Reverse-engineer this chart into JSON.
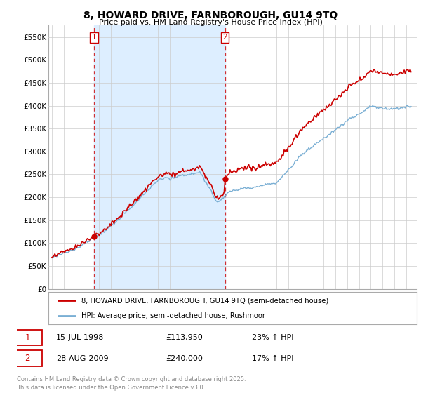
{
  "title": "8, HOWARD DRIVE, FARNBOROUGH, GU14 9TQ",
  "subtitle": "Price paid vs. HM Land Registry's House Price Index (HPI)",
  "line1_label": "8, HOWARD DRIVE, FARNBOROUGH, GU14 9TQ (semi-detached house)",
  "line2_label": "HPI: Average price, semi-detached house, Rushmoor",
  "line1_color": "#cc0000",
  "line2_color": "#7aafd4",
  "vline_color": "#cc0000",
  "shade_color": "#ddeeff",
  "purchase1_date": "15-JUL-1998",
  "purchase1_price": 113950,
  "purchase1_hpi": "23% ↑ HPI",
  "purchase2_date": "28-AUG-2009",
  "purchase2_price": 240000,
  "purchase2_hpi": "17% ↑ HPI",
  "ylim": [
    0,
    575000
  ],
  "yticks": [
    0,
    50000,
    100000,
    150000,
    200000,
    250000,
    300000,
    350000,
    400000,
    450000,
    500000,
    550000
  ],
  "ytick_labels": [
    "£0",
    "£50K",
    "£100K",
    "£150K",
    "£200K",
    "£250K",
    "£300K",
    "£350K",
    "£400K",
    "£450K",
    "£500K",
    "£550K"
  ],
  "footer": "Contains HM Land Registry data © Crown copyright and database right 2025.\nThis data is licensed under the Open Government Licence v3.0.",
  "background_color": "#ffffff",
  "grid_color": "#cccccc",
  "purchase1_x": 1998.55,
  "purchase2_x": 2009.65,
  "xlim_left": 1994.7,
  "xlim_right": 2025.9
}
